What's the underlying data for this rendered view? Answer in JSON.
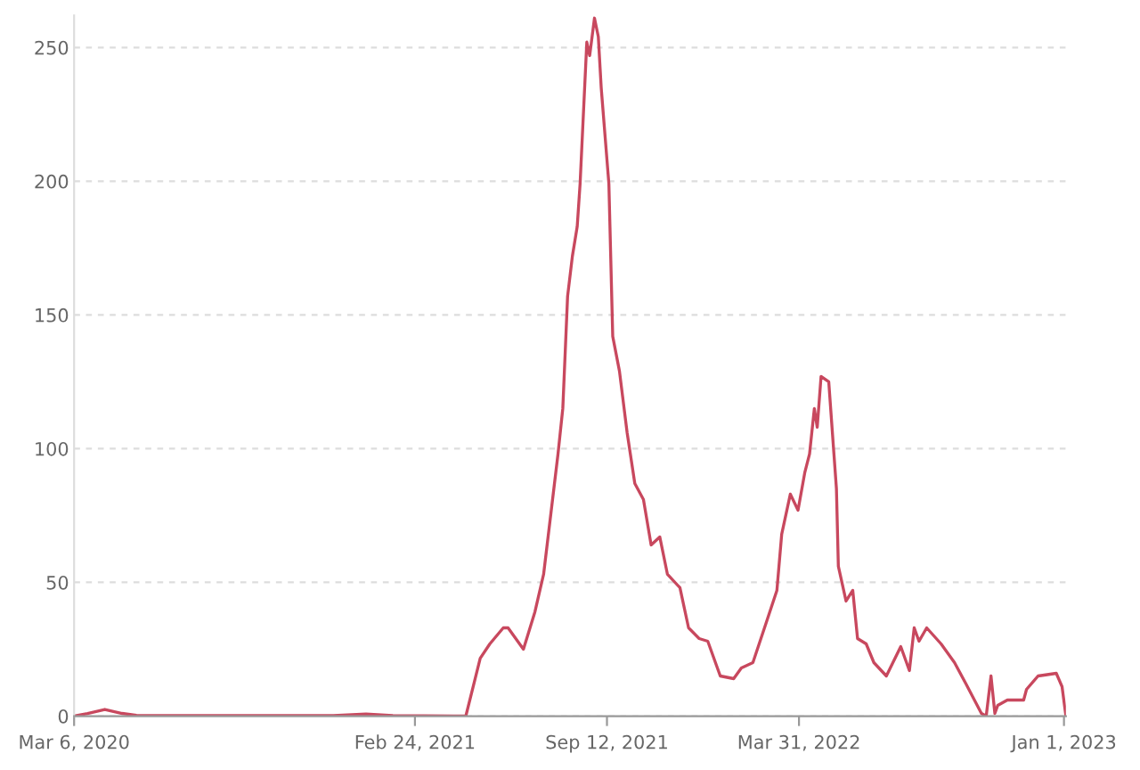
{
  "chart_data": {
    "type": "line",
    "x": [
      "2020-03-06",
      "2020-03-20",
      "2020-04-07",
      "2020-04-25",
      "2020-05-10",
      "2020-08-01",
      "2020-12-01",
      "2021-01-04",
      "2021-02-01",
      "2021-04-18",
      "2021-05-03",
      "2021-05-13",
      "2021-05-27",
      "2021-06-01",
      "2021-06-17",
      "2021-06-29",
      "2021-07-08",
      "2021-07-16",
      "2021-07-23",
      "2021-07-28",
      "2021-08-02",
      "2021-08-07",
      "2021-08-12",
      "2021-08-15",
      "2021-08-22",
      "2021-08-25",
      "2021-08-30",
      "2021-09-03",
      "2021-09-06",
      "2021-09-14",
      "2021-09-18",
      "2021-09-25",
      "2021-10-03",
      "2021-10-11",
      "2021-10-20",
      "2021-10-28",
      "2021-11-06",
      "2021-11-14",
      "2021-11-27",
      "2021-12-06",
      "2021-12-17",
      "2021-12-26",
      "2022-01-08",
      "2022-01-22",
      "2022-01-30",
      "2022-02-11",
      "2022-02-24",
      "2022-03-08",
      "2022-03-13",
      "2022-03-22",
      "2022-03-30",
      "2022-04-06",
      "2022-04-11",
      "2022-04-16",
      "2022-04-19",
      "2022-04-23",
      "2022-05-01",
      "2022-05-09",
      "2022-05-11",
      "2022-05-19",
      "2022-05-26",
      "2022-05-31",
      "2022-06-09",
      "2022-06-17",
      "2022-06-30",
      "2022-07-15",
      "2022-07-24",
      "2022-07-29",
      "2022-08-03",
      "2022-08-11",
      "2022-08-26",
      "2022-09-09",
      "2022-09-21",
      "2022-10-07",
      "2022-10-12",
      "2022-10-17",
      "2022-10-21",
      "2022-10-24",
      "2022-11-03",
      "2022-11-20",
      "2022-11-23",
      "2022-12-05",
      "2022-12-24",
      "2022-12-30",
      "2023-01-03"
    ],
    "series": [
      {
        "color": "#c8485e",
        "values": [
          0,
          1,
          2.5,
          1,
          0.3,
          0.2,
          0.2,
          0.8,
          0.2,
          0,
          21.6,
          27,
          33,
          33,
          25,
          39,
          53,
          77,
          98,
          115,
          157,
          172,
          183,
          199,
          252,
          247,
          261,
          254,
          235,
          199,
          142,
          129,
          106,
          87,
          81,
          64,
          67,
          53,
          48,
          33,
          29,
          28,
          15,
          14,
          18,
          20,
          34,
          47,
          68,
          83,
          77,
          91,
          98,
          115,
          108,
          127,
          125,
          85,
          56,
          43,
          47,
          29,
          27,
          20,
          15,
          26,
          17,
          33,
          28,
          33,
          27,
          20,
          12,
          1,
          0,
          15,
          1,
          4,
          6,
          6,
          10,
          15,
          16,
          11,
          0
        ]
      }
    ],
    "xlim": [
      "2020-03-06",
      "2023-01-03"
    ],
    "xticks": [
      {
        "value": "2020-03-06",
        "label": "Mar 6, 2020"
      },
      {
        "value": "2021-02-24",
        "label": "Feb 24, 2021"
      },
      {
        "value": "2021-09-12",
        "label": "Sep 12, 2021"
      },
      {
        "value": "2022-03-31",
        "label": "Mar 31, 2022"
      },
      {
        "value": "2023-01-01",
        "label": "Jan 1, 2023"
      }
    ],
    "ylim": [
      0,
      262
    ],
    "yticks": [
      0,
      50,
      100,
      150,
      200,
      250
    ],
    "grid": "y",
    "legend": false,
    "marker": "none",
    "line_style": "solid"
  }
}
